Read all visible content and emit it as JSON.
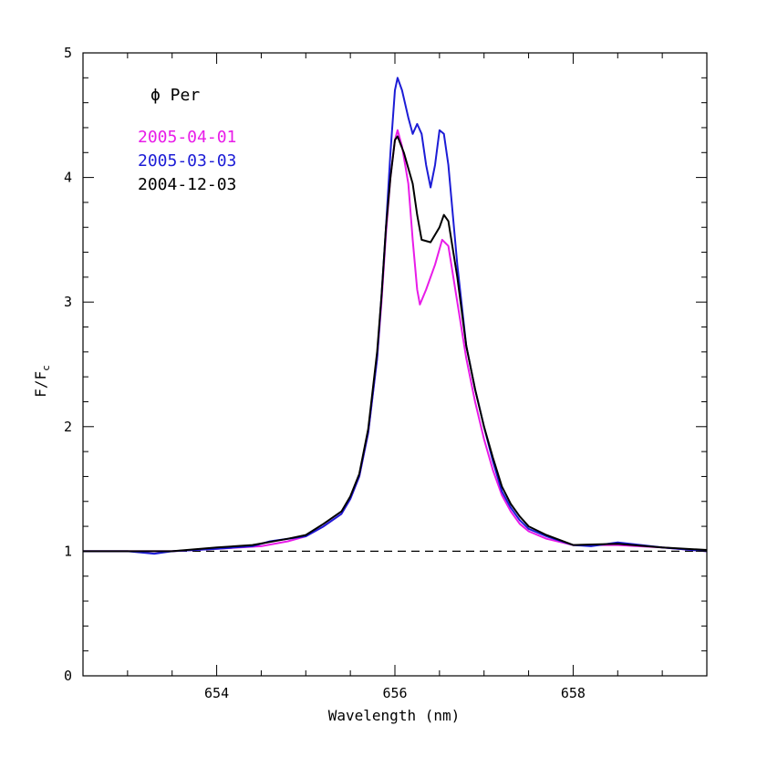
{
  "chart_data": {
    "type": "line",
    "title": "ϕ Per",
    "xlabel": "Wavelength (nm)",
    "ylabel": "F/F",
    "ylabel_sub": "c",
    "xlim": [
      652.5,
      659.5
    ],
    "ylim": [
      0,
      5
    ],
    "x_ticks": [
      654,
      656,
      658
    ],
    "y_ticks": [
      0,
      1,
      2,
      3,
      4,
      5
    ],
    "reference_line": {
      "y": 1,
      "style": "dashed",
      "color": "#000000"
    },
    "series": [
      {
        "name": "2005-04-01",
        "color": "#e81ce8",
        "points": [
          [
            652.5,
            1.0
          ],
          [
            653.0,
            1.0
          ],
          [
            653.5,
            1.0
          ],
          [
            654.0,
            1.02
          ],
          [
            654.5,
            1.04
          ],
          [
            654.8,
            1.08
          ],
          [
            655.0,
            1.12
          ],
          [
            655.2,
            1.2
          ],
          [
            655.4,
            1.3
          ],
          [
            655.5,
            1.42
          ],
          [
            655.6,
            1.6
          ],
          [
            655.7,
            1.95
          ],
          [
            655.8,
            2.55
          ],
          [
            655.85,
            3.0
          ],
          [
            655.9,
            3.55
          ],
          [
            655.95,
            4.0
          ],
          [
            656.0,
            4.3
          ],
          [
            656.03,
            4.38
          ],
          [
            656.08,
            4.25
          ],
          [
            656.15,
            3.95
          ],
          [
            656.2,
            3.5
          ],
          [
            656.25,
            3.1
          ],
          [
            656.28,
            2.98
          ],
          [
            656.35,
            3.1
          ],
          [
            656.45,
            3.3
          ],
          [
            656.53,
            3.5
          ],
          [
            656.6,
            3.45
          ],
          [
            656.7,
            3.0
          ],
          [
            656.8,
            2.55
          ],
          [
            656.9,
            2.2
          ],
          [
            657.0,
            1.9
          ],
          [
            657.1,
            1.65
          ],
          [
            657.2,
            1.45
          ],
          [
            657.3,
            1.32
          ],
          [
            657.4,
            1.22
          ],
          [
            657.5,
            1.16
          ],
          [
            657.7,
            1.1
          ],
          [
            658.0,
            1.05
          ],
          [
            658.5,
            1.05
          ],
          [
            659.0,
            1.03
          ],
          [
            659.5,
            1.0
          ]
        ]
      },
      {
        "name": "2005-03-03",
        "color": "#1c1cd6",
        "points": [
          [
            652.5,
            1.0
          ],
          [
            653.0,
            1.0
          ],
          [
            653.3,
            0.98
          ],
          [
            653.5,
            1.0
          ],
          [
            654.0,
            1.02
          ],
          [
            654.4,
            1.04
          ],
          [
            654.6,
            1.08
          ],
          [
            654.8,
            1.1
          ],
          [
            655.0,
            1.12
          ],
          [
            655.2,
            1.2
          ],
          [
            655.4,
            1.3
          ],
          [
            655.5,
            1.42
          ],
          [
            655.6,
            1.6
          ],
          [
            655.7,
            1.95
          ],
          [
            655.8,
            2.55
          ],
          [
            655.85,
            3.05
          ],
          [
            655.9,
            3.6
          ],
          [
            655.95,
            4.2
          ],
          [
            656.0,
            4.7
          ],
          [
            656.03,
            4.8
          ],
          [
            656.08,
            4.7
          ],
          [
            656.15,
            4.48
          ],
          [
            656.2,
            4.35
          ],
          [
            656.25,
            4.43
          ],
          [
            656.3,
            4.35
          ],
          [
            656.35,
            4.1
          ],
          [
            656.4,
            3.92
          ],
          [
            656.45,
            4.1
          ],
          [
            656.5,
            4.38
          ],
          [
            656.55,
            4.35
          ],
          [
            656.6,
            4.1
          ],
          [
            656.7,
            3.3
          ],
          [
            656.8,
            2.65
          ],
          [
            656.9,
            2.3
          ],
          [
            657.0,
            2.0
          ],
          [
            657.1,
            1.72
          ],
          [
            657.2,
            1.48
          ],
          [
            657.3,
            1.35
          ],
          [
            657.4,
            1.25
          ],
          [
            657.5,
            1.18
          ],
          [
            657.7,
            1.12
          ],
          [
            658.0,
            1.05
          ],
          [
            658.2,
            1.04
          ],
          [
            658.5,
            1.07
          ],
          [
            659.0,
            1.03
          ],
          [
            659.5,
            1.0
          ]
        ]
      },
      {
        "name": "2004-12-03",
        "color": "#000000",
        "points": [
          [
            652.5,
            1.0
          ],
          [
            653.0,
            1.0
          ],
          [
            653.5,
            1.0
          ],
          [
            654.0,
            1.03
          ],
          [
            654.4,
            1.05
          ],
          [
            654.8,
            1.1
          ],
          [
            655.0,
            1.13
          ],
          [
            655.2,
            1.22
          ],
          [
            655.4,
            1.32
          ],
          [
            655.5,
            1.44
          ],
          [
            655.6,
            1.62
          ],
          [
            655.7,
            1.98
          ],
          [
            655.8,
            2.6
          ],
          [
            655.85,
            3.05
          ],
          [
            655.9,
            3.6
          ],
          [
            655.95,
            4.0
          ],
          [
            656.0,
            4.3
          ],
          [
            656.03,
            4.33
          ],
          [
            656.1,
            4.2
          ],
          [
            656.2,
            3.95
          ],
          [
            656.25,
            3.7
          ],
          [
            656.3,
            3.5
          ],
          [
            656.4,
            3.48
          ],
          [
            656.5,
            3.6
          ],
          [
            656.55,
            3.7
          ],
          [
            656.6,
            3.65
          ],
          [
            656.7,
            3.2
          ],
          [
            656.8,
            2.65
          ],
          [
            656.9,
            2.3
          ],
          [
            657.0,
            2.0
          ],
          [
            657.1,
            1.75
          ],
          [
            657.2,
            1.52
          ],
          [
            657.3,
            1.38
          ],
          [
            657.4,
            1.28
          ],
          [
            657.5,
            1.2
          ],
          [
            657.7,
            1.13
          ],
          [
            658.0,
            1.05
          ],
          [
            658.5,
            1.06
          ],
          [
            659.0,
            1.03
          ],
          [
            659.5,
            1.01
          ]
        ]
      }
    ]
  }
}
